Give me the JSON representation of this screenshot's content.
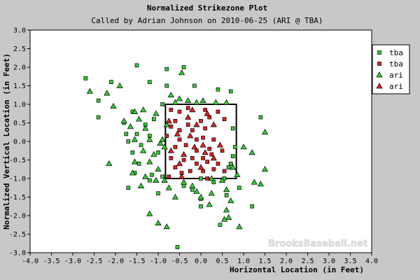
{
  "chart_data": {
    "type": "scatter",
    "title": "Normalized Strikezone Plot",
    "subtitle": "Called by Adrian Johnson on 2010-06-25 (ARI @ TBA)",
    "xlabel": "Horizontal Location (in Feet)",
    "ylabel": "Normalized Vertical Location (in Feet)",
    "xlim": [
      -4.0,
      4.0
    ],
    "ylim": [
      -3.0,
      3.0
    ],
    "x_ticks": [
      -4.0,
      -3.5,
      -3.0,
      -2.5,
      -2.0,
      -1.5,
      -1.0,
      -0.5,
      0.0,
      0.5,
      1.0,
      1.5,
      2.0,
      2.5,
      3.0,
      3.5,
      4.0
    ],
    "x_tick_labels": [
      "-4.0",
      "-3.5",
      "-3.0",
      "-2.5",
      "-2.0",
      "-1.5",
      "-1.0",
      "-0.5",
      "0.0",
      "0.5",
      "1.0",
      "1.5",
      "2.0",
      "2.5",
      "3.0",
      "3.5",
      "4.0"
    ],
    "y_ticks": [
      3.0,
      2.5,
      2.0,
      1.5,
      1.0,
      0.5,
      0.0,
      -0.5,
      -1.0,
      -1.5,
      -2.0,
      -2.5,
      -3.0
    ],
    "y_tick_labels": [
      "3.0",
      "2.5",
      "2.0",
      "1.5",
      "1.0",
      "0.5",
      "0.0",
      "-0.5",
      "-1.0",
      "-1.5",
      "-2.0",
      "-2.5",
      "-3.0"
    ],
    "grid": false,
    "legend_position": "top-right",
    "strike_zone": {
      "x": [
        -0.83,
        0.83
      ],
      "y": [
        -1.0,
        1.0
      ]
    },
    "watermark": "BrooksBaseball.net",
    "series": [
      {
        "name": "tba",
        "marker": "square",
        "color": "#33cc33",
        "points": [
          [
            -2.7,
            1.7
          ],
          [
            -2.4,
            1.1
          ],
          [
            -2.1,
            1.6
          ],
          [
            -1.5,
            2.05
          ],
          [
            -1.2,
            1.6
          ],
          [
            -0.8,
            1.5
          ],
          [
            -0.9,
            1.0
          ],
          [
            -1.6,
            0.8
          ],
          [
            -1.8,
            0.5
          ],
          [
            -1.3,
            0.45
          ],
          [
            -1.1,
            0.6
          ],
          [
            -1.75,
            0.2
          ],
          [
            -1.5,
            0.2
          ],
          [
            -1.2,
            0.15
          ],
          [
            -1.7,
            0.0
          ],
          [
            -1.4,
            -0.1
          ],
          [
            -1.6,
            -0.3
          ],
          [
            -1.0,
            -0.3
          ],
          [
            -1.45,
            -0.6
          ],
          [
            -1.55,
            -0.85
          ],
          [
            -1.15,
            -0.9
          ],
          [
            -0.9,
            -0.95
          ],
          [
            -1.7,
            -1.25
          ],
          [
            -1.2,
            -1.05
          ],
          [
            -0.4,
            -1.2
          ],
          [
            -0.2,
            -1.3
          ],
          [
            0.0,
            -1.0
          ],
          [
            0.3,
            -1.1
          ],
          [
            0.55,
            -1.0
          ],
          [
            0.9,
            -1.25
          ],
          [
            0.6,
            -1.45
          ],
          [
            -0.8,
            1.95
          ],
          [
            -0.4,
            2.0
          ],
          [
            -0.15,
            1.5
          ],
          [
            0.4,
            1.4
          ],
          [
            0.7,
            1.35
          ],
          [
            1.4,
            0.65
          ],
          [
            0.75,
            0.35
          ],
          [
            0.8,
            -0.15
          ],
          [
            0.75,
            -0.4
          ],
          [
            0.7,
            -0.6
          ],
          [
            0.0,
            -1.55
          ],
          [
            0.0,
            -1.75
          ],
          [
            0.45,
            -2.25
          ],
          [
            1.2,
            -1.75
          ],
          [
            -0.55,
            -2.85
          ],
          [
            -2.4,
            0.65
          ],
          [
            -1.0,
            -1.4
          ],
          [
            0.65,
            -0.7
          ]
        ]
      },
      {
        "name": "tba",
        "marker": "square",
        "color": "#dd2222",
        "points": [
          [
            -0.7,
            0.85
          ],
          [
            -0.5,
            0.8
          ],
          [
            -0.3,
            0.9
          ],
          [
            0.1,
            0.85
          ],
          [
            0.2,
            0.65
          ],
          [
            -0.6,
            0.55
          ],
          [
            -0.3,
            0.45
          ],
          [
            0.0,
            0.55
          ],
          [
            0.4,
            0.8
          ],
          [
            -0.7,
            0.4
          ],
          [
            -0.5,
            0.3
          ],
          [
            -0.2,
            0.3
          ],
          [
            0.1,
            0.35
          ],
          [
            -0.8,
            0.15
          ],
          [
            -0.5,
            0.05
          ],
          [
            -0.1,
            0.05
          ],
          [
            0.05,
            0.1
          ],
          [
            0.3,
            0.05
          ],
          [
            -0.6,
            -0.15
          ],
          [
            -0.35,
            -0.1
          ],
          [
            -0.1,
            -0.25
          ],
          [
            0.2,
            -0.2
          ],
          [
            0.5,
            -0.25
          ],
          [
            -0.7,
            -0.45
          ],
          [
            -0.4,
            -0.5
          ],
          [
            -0.1,
            -0.6
          ],
          [
            0.15,
            -0.55
          ],
          [
            0.4,
            -0.6
          ],
          [
            -0.6,
            -0.7
          ],
          [
            -0.25,
            -0.8
          ],
          [
            0.05,
            -0.8
          ],
          [
            0.3,
            -0.75
          ],
          [
            0.55,
            -0.8
          ],
          [
            -0.75,
            -0.95
          ],
          [
            -0.45,
            -0.85
          ],
          [
            0.15,
            -1.0
          ],
          [
            0.55,
            0.6
          ],
          [
            -0.2,
            -0.45
          ],
          [
            0.25,
            -0.35
          ],
          [
            0.05,
            -0.45
          ]
        ]
      },
      {
        "name": "ari",
        "marker": "triangle",
        "color": "#33cc33",
        "points": [
          [
            -2.6,
            1.35
          ],
          [
            -2.2,
            1.3
          ],
          [
            -1.9,
            1.5
          ],
          [
            -2.05,
            0.95
          ],
          [
            -1.8,
            0.55
          ],
          [
            -1.55,
            0.8
          ],
          [
            -1.35,
            0.85
          ],
          [
            -1.45,
            0.6
          ],
          [
            -1.65,
            0.4
          ],
          [
            -1.3,
            0.35
          ],
          [
            -1.05,
            0.75
          ],
          [
            -1.55,
            0.05
          ],
          [
            -1.2,
            0.05
          ],
          [
            -0.95,
            -0.05
          ],
          [
            -1.35,
            -0.25
          ],
          [
            -1.1,
            -0.35
          ],
          [
            -0.85,
            -0.15
          ],
          [
            -1.55,
            -0.55
          ],
          [
            -1.2,
            -0.55
          ],
          [
            -1.0,
            -0.75
          ],
          [
            -1.6,
            -0.85
          ],
          [
            -1.3,
            -0.95
          ],
          [
            -1.05,
            -1.05
          ],
          [
            -0.85,
            -1.05
          ],
          [
            -1.4,
            -1.2
          ],
          [
            -0.75,
            -1.25
          ],
          [
            -2.15,
            -0.6
          ],
          [
            -0.6,
            1.05
          ],
          [
            -0.3,
            1.1
          ],
          [
            -0.1,
            1.05
          ],
          [
            0.05,
            1.1
          ],
          [
            0.6,
            1.05
          ],
          [
            -0.7,
            1.25
          ],
          [
            -0.5,
            1.15
          ],
          [
            -0.45,
            1.85
          ],
          [
            0.35,
            1.05
          ],
          [
            -0.8,
            0.45
          ],
          [
            -0.9,
            0.05
          ],
          [
            1.0,
            -0.15
          ],
          [
            1.2,
            -0.3
          ],
          [
            0.75,
            -0.7
          ],
          [
            0.85,
            -0.9
          ],
          [
            1.5,
            -0.75
          ],
          [
            1.25,
            -1.1
          ],
          [
            0.6,
            -1.3
          ],
          [
            0.25,
            -1.4
          ],
          [
            0.0,
            -1.5
          ],
          [
            -0.1,
            -1.35
          ],
          [
            0.5,
            -1.05
          ],
          [
            0.25,
            -1.0
          ],
          [
            -0.2,
            -1.2
          ],
          [
            -0.4,
            -1.1
          ],
          [
            0.7,
            -1.6
          ],
          [
            0.6,
            -1.85
          ],
          [
            0.65,
            -2.05
          ],
          [
            0.55,
            -2.1
          ],
          [
            0.9,
            -2.3
          ],
          [
            0.2,
            -1.7
          ],
          [
            -1.2,
            -1.95
          ],
          [
            -1.0,
            -2.2
          ],
          [
            -0.8,
            -2.3
          ],
          [
            1.5,
            0.25
          ],
          [
            -0.6,
            -1.5
          ],
          [
            1.4,
            -1.15
          ]
        ]
      },
      {
        "name": "ari",
        "marker": "triangle",
        "color": "#dd2222",
        "points": [
          [
            -0.75,
            0.55
          ],
          [
            -0.55,
            0.2
          ],
          [
            -0.3,
            0.65
          ],
          [
            -0.1,
            0.45
          ],
          [
            0.15,
            0.75
          ],
          [
            0.3,
            0.45
          ],
          [
            -0.7,
            -0.25
          ],
          [
            -0.4,
            -0.35
          ],
          [
            -0.25,
            0.15
          ],
          [
            -0.15,
            -0.15
          ],
          [
            0.05,
            -0.1
          ],
          [
            0.3,
            -0.45
          ],
          [
            0.45,
            -0.1
          ],
          [
            -0.5,
            -0.6
          ],
          [
            -0.45,
            -0.95
          ],
          [
            0.0,
            -0.7
          ],
          [
            -0.2,
            0.85
          ],
          [
            0.1,
            -0.3
          ]
        ]
      }
    ]
  }
}
